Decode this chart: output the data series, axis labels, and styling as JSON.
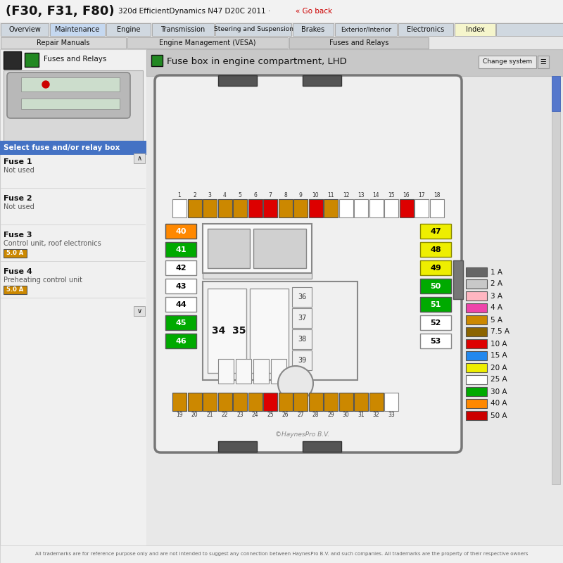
{
  "title": "(F30, F31, F80)",
  "title_suffix": " 320d EfficientDynamics N47 D20C 2011 ·  ",
  "go_back": "« Go back",
  "tabs": [
    "Overview",
    "Maintenance",
    "Engine",
    "Transmission",
    "Steering and Suspension",
    "Brakes",
    "Exterior/Interior",
    "Electronics",
    "Index"
  ],
  "active_tab": "Maintenance",
  "subtabs": [
    "Repair Manuals",
    "Engine Management (VESA)",
    "Fuses and Relays"
  ],
  "active_subtab": "Fuses and Relays",
  "section_title": "Fuse box in engine compartment, LHD",
  "fuse_legend": [
    {
      "label": "1 A",
      "color": "#666666"
    },
    {
      "label": "2 A",
      "color": "#c8c8c8"
    },
    {
      "label": "3 A",
      "color": "#ffb6c1"
    },
    {
      "label": "4 A",
      "color": "#ee44aa"
    },
    {
      "label": "5 A",
      "color": "#cc8800"
    },
    {
      "label": "7.5 A",
      "color": "#8b6400"
    },
    {
      "label": "10 A",
      "color": "#dd0000"
    },
    {
      "label": "15 A",
      "color": "#2288ee"
    },
    {
      "label": "20 A",
      "color": "#eeee00"
    },
    {
      "label": "25 A",
      "color": "#ffffff"
    },
    {
      "label": "30 A",
      "color": "#00aa00"
    },
    {
      "label": "40 A",
      "color": "#ff8800"
    },
    {
      "label": "50 A",
      "color": "#cc0000"
    }
  ],
  "top_row_fuses": [
    {
      "num": "1",
      "color": "#ffffff"
    },
    {
      "num": "2",
      "color": "#cc8800"
    },
    {
      "num": "3",
      "color": "#cc8800"
    },
    {
      "num": "4",
      "color": "#cc8800"
    },
    {
      "num": "5",
      "color": "#cc8800"
    },
    {
      "num": "6",
      "color": "#dd0000"
    },
    {
      "num": "7",
      "color": "#dd0000"
    },
    {
      "num": "8",
      "color": "#cc8800"
    },
    {
      "num": "9",
      "color": "#cc8800"
    },
    {
      "num": "10",
      "color": "#dd0000"
    },
    {
      "num": "11",
      "color": "#cc8800"
    },
    {
      "num": "12",
      "color": "#ffffff"
    },
    {
      "num": "13",
      "color": "#ffffff"
    },
    {
      "num": "14",
      "color": "#ffffff"
    },
    {
      "num": "15",
      "color": "#ffffff"
    },
    {
      "num": "16",
      "color": "#dd0000"
    },
    {
      "num": "17",
      "color": "#ffffff"
    },
    {
      "num": "18",
      "color": "#ffffff"
    }
  ],
  "bottom_row_fuses": [
    {
      "num": "19",
      "color": "#cc8800"
    },
    {
      "num": "20",
      "color": "#cc8800"
    },
    {
      "num": "21",
      "color": "#cc8800"
    },
    {
      "num": "22",
      "color": "#cc8800"
    },
    {
      "num": "23",
      "color": "#cc8800"
    },
    {
      "num": "24",
      "color": "#cc8800"
    },
    {
      "num": "25",
      "color": "#dd0000"
    },
    {
      "num": "26",
      "color": "#cc8800"
    },
    {
      "num": "27",
      "color": "#cc8800"
    },
    {
      "num": "28",
      "color": "#cc8800"
    },
    {
      "num": "29",
      "color": "#cc8800"
    },
    {
      "num": "30",
      "color": "#cc8800"
    },
    {
      "num": "31",
      "color": "#cc8800"
    },
    {
      "num": "32",
      "color": "#cc8800"
    },
    {
      "num": "33",
      "color": "#ffffff"
    }
  ],
  "left_col_fuses": [
    {
      "num": "40",
      "color": "#ff8800"
    },
    {
      "num": "41",
      "color": "#00aa00"
    },
    {
      "num": "42",
      "color": "#ffffff"
    },
    {
      "num": "43",
      "color": "#ffffff"
    },
    {
      "num": "44",
      "color": "#ffffff"
    },
    {
      "num": "45",
      "color": "#00aa00"
    },
    {
      "num": "46",
      "color": "#00aa00"
    }
  ],
  "right_col_fuses": [
    {
      "num": "47",
      "color": "#eeee00"
    },
    {
      "num": "48",
      "color": "#eeee00"
    },
    {
      "num": "49",
      "color": "#eeee00"
    },
    {
      "num": "50",
      "color": "#00aa00"
    },
    {
      "num": "51",
      "color": "#00aa00"
    },
    {
      "num": "52",
      "color": "#ffffff"
    },
    {
      "num": "53",
      "color": "#ffffff"
    }
  ],
  "side_fuses_36_39": [
    "36",
    "37",
    "38",
    "39"
  ],
  "left_panel_fuses": [
    {
      "fuse": "Fuse 1",
      "desc": "Not used"
    },
    {
      "fuse": "Fuse 2",
      "desc": "Not used"
    },
    {
      "fuse": "Fuse 3",
      "desc": "Control unit, roof electronics",
      "amp": "5.0 A",
      "amp_color": "#cc8800"
    },
    {
      "fuse": "Fuse 4",
      "desc": "Preheating control unit",
      "amp": "5.0 A",
      "amp_color": "#cc8800"
    }
  ],
  "copyright": "©HaynesPro B.V.",
  "disclaimer": "All trademarks are for reference purpose only and are not intended to suggest any connection between HaynesPro B.V. and such companies. All trademarks are the property of their respective owners"
}
